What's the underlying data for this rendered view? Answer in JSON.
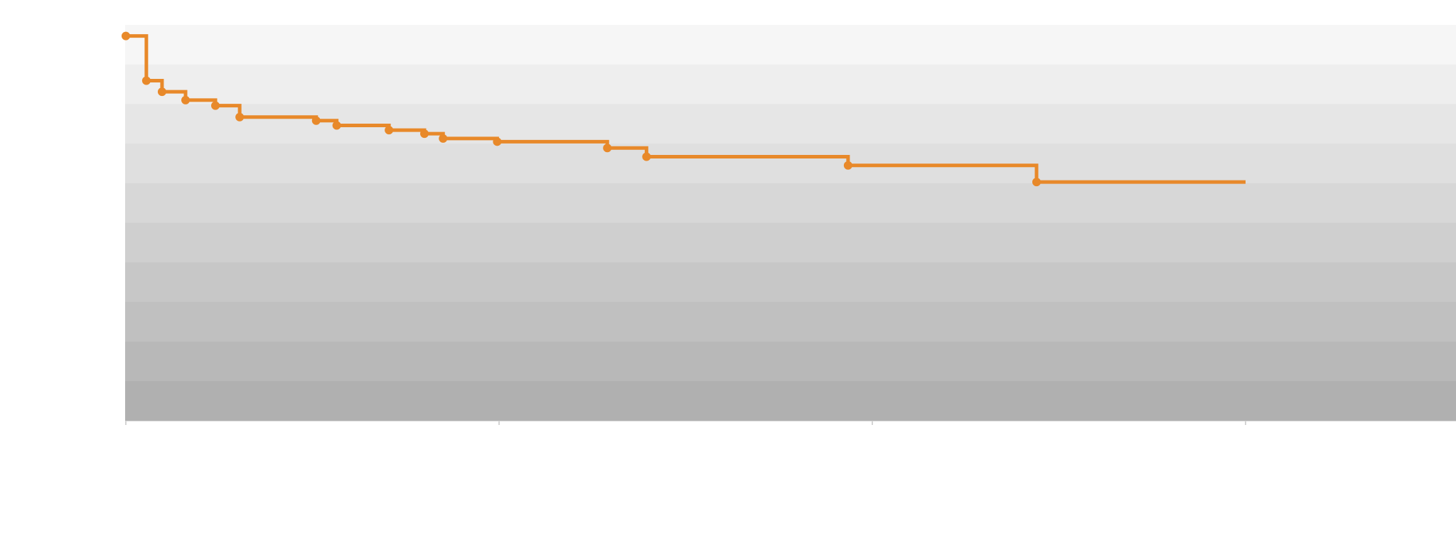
{
  "chart_data": {
    "type": "line",
    "subtype": "step",
    "title": "",
    "xlabel": "",
    "ylabel": "",
    "xlim": [
      0,
      3.6
    ],
    "ylim": [
      0,
      1
    ],
    "xticks": [
      0,
      1,
      2,
      3
    ],
    "tick_labels_visible": false,
    "grid": "horizontal-bands",
    "series": [
      {
        "color": "#e8892a",
        "end_x": 3.0,
        "points": [
          {
            "x": 0.0,
            "y": 0.972
          },
          {
            "x": 0.055,
            "y": 0.859
          },
          {
            "x": 0.097,
            "y": 0.831
          },
          {
            "x": 0.16,
            "y": 0.81
          },
          {
            "x": 0.24,
            "y": 0.796
          },
          {
            "x": 0.305,
            "y": 0.767
          },
          {
            "x": 0.51,
            "y": 0.758
          },
          {
            "x": 0.565,
            "y": 0.746
          },
          {
            "x": 0.705,
            "y": 0.734
          },
          {
            "x": 0.8,
            "y": 0.725
          },
          {
            "x": 0.85,
            "y": 0.713
          },
          {
            "x": 0.995,
            "y": 0.705
          },
          {
            "x": 1.29,
            "y": 0.689
          },
          {
            "x": 1.395,
            "y": 0.667
          },
          {
            "x": 1.935,
            "y": 0.645
          },
          {
            "x": 2.44,
            "y": 0.603
          }
        ]
      }
    ]
  }
}
